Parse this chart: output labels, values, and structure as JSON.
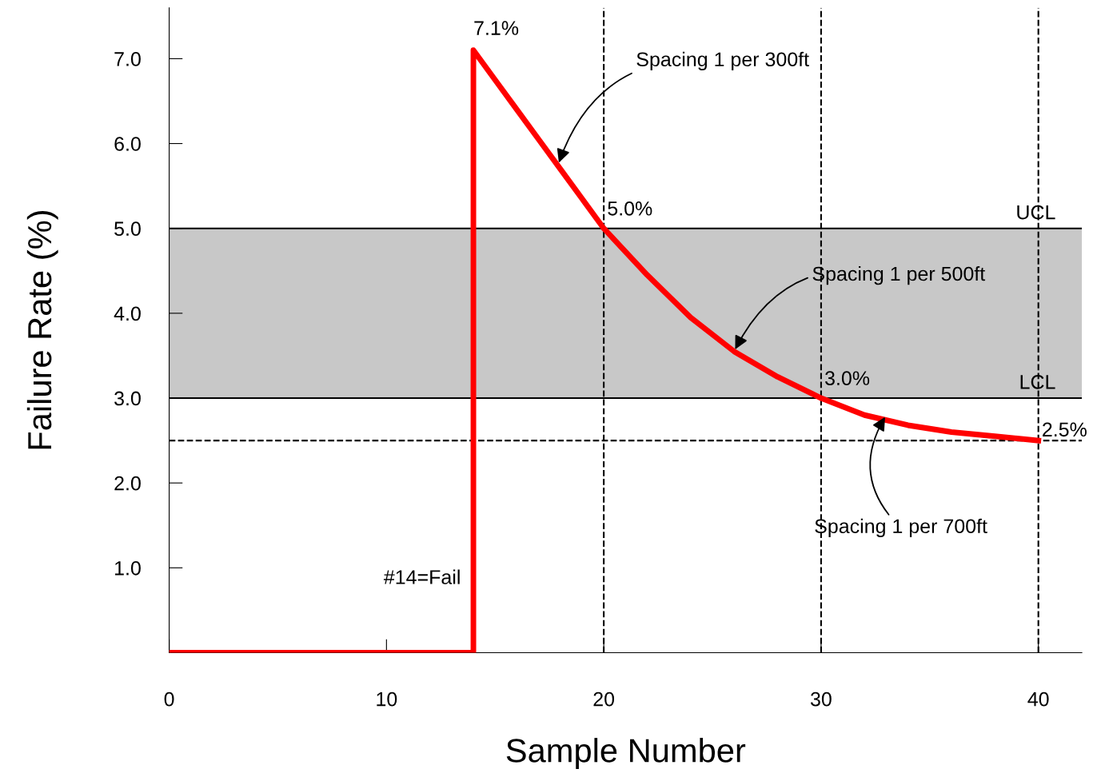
{
  "chart_data": {
    "type": "line",
    "xlabel": "Sample Number",
    "ylabel": "Failure Rate (%)",
    "series": [
      {
        "color": "#ff0000",
        "x": [
          0,
          14,
          14,
          15,
          16,
          17,
          18,
          19,
          20,
          22,
          24,
          26,
          28,
          30,
          32,
          34,
          36,
          38,
          40
        ],
        "values": [
          0,
          0,
          7.1,
          6.75,
          6.4,
          6.05,
          5.7,
          5.35,
          5.0,
          4.45,
          3.95,
          3.55,
          3.25,
          3.0,
          2.8,
          2.68,
          2.6,
          2.55,
          2.5
        ]
      }
    ],
    "xlim": [
      0,
      42
    ],
    "ylim": [
      0,
      7.6
    ],
    "xticks": [
      0,
      10,
      20,
      30,
      40
    ],
    "yticks": [
      {
        "value": 1,
        "label": "1.0"
      },
      {
        "value": 2,
        "label": "2.0"
      },
      {
        "value": 3,
        "label": "3.0"
      },
      {
        "value": 4,
        "label": "4.0"
      },
      {
        "value": 5,
        "label": "5.0"
      },
      {
        "value": 6,
        "label": "6.0"
      },
      {
        "value": 7,
        "label": "7.0"
      }
    ],
    "bands": [
      {
        "axis": "y",
        "from": 3,
        "to": 5,
        "color": "#c8c8c8"
      }
    ],
    "ref_lines": [
      {
        "axis": "y",
        "value": 5,
        "label": "UCL",
        "color": "#000000",
        "line_style": "solid"
      },
      {
        "axis": "y",
        "value": 3,
        "label": "LCL",
        "color": "#000000",
        "line_style": "solid"
      },
      {
        "axis": "y",
        "value": 2.5,
        "color": "#000000",
        "line_style": "dashed"
      },
      {
        "axis": "x",
        "value": 20,
        "color": "#000000",
        "line_style": "dashed"
      },
      {
        "axis": "x",
        "value": 30,
        "color": "#000000",
        "line_style": "dashed"
      },
      {
        "axis": "x",
        "value": 40,
        "color": "#000000",
        "line_style": "dashed"
      }
    ],
    "annotations": [
      {
        "text": "7.1%",
        "x": 14,
        "y": 7.1
      },
      {
        "text": "5.0%",
        "x": 20,
        "y": 5.0
      },
      {
        "text": "3.0%",
        "x": 30,
        "y": 3.0
      },
      {
        "text": "2.5%",
        "x": 40,
        "y": 2.5
      },
      "#14=Fail",
      {
        "text": "Spacing 1 per 300ft",
        "x": 17.9,
        "y": 5.75
      },
      {
        "text": "Spacing 1 per 500ft",
        "x": 26,
        "y": 3.55
      },
      {
        "text": "Spacing 1 per 700ft",
        "x": 33,
        "y": 2.8
      }
    ],
    "grid": false,
    "legend": false
  }
}
